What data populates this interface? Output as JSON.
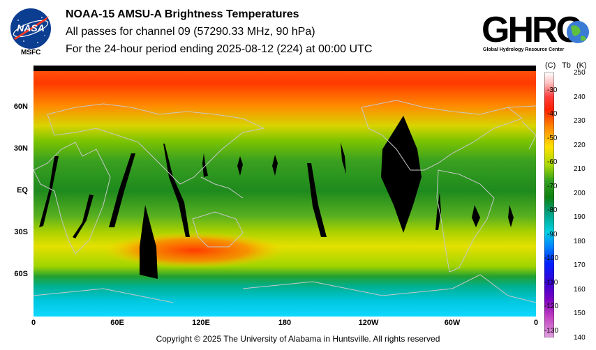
{
  "header": {
    "title": "NOAA-15 AMSU-A Brightness Temperatures",
    "line1": "All passes for channel 09 (57290.33 MHz, 90 hPa)",
    "line2": "For the 24-hour period ending 2025-08-12 (224) at 00:00 UTC"
  },
  "logos": {
    "nasa_text": "NASA",
    "msfc_label": "MSFC",
    "ghrc_text": "GHRC",
    "ghrc_subtitle": "Global Hydrology Resource Center"
  },
  "map": {
    "lat_labels": [
      "60N",
      "30N",
      "EQ",
      "30S",
      "60S"
    ],
    "lon_labels": [
      "0",
      "60E",
      "120E",
      "180",
      "120W",
      "60W",
      "0"
    ],
    "lat_range": [
      -90,
      90
    ],
    "lon_range": [
      0,
      360
    ]
  },
  "colorbar": {
    "header_c": "(C)",
    "header_tb": "Tb",
    "header_k": "(K)",
    "k_ticks": [
      "250",
      "240",
      "230",
      "220",
      "210",
      "200",
      "190",
      "180",
      "170",
      "160",
      "150",
      "140"
    ],
    "c_ticks": [
      "-30",
      "-40",
      "-50",
      "-60",
      "-70",
      "-80",
      "-90",
      "-100",
      "-110",
      "-120",
      "-130"
    ],
    "k_range": [
      140,
      250
    ]
  },
  "footer": {
    "copyright": "Copyright © 2025 The University of Alabama in Huntsville.  All rights reserved"
  },
  "colors": {
    "missing": "#000000",
    "cold": "#00c8f0",
    "mid": "#1e8c1e",
    "warm": "#ff4000"
  }
}
